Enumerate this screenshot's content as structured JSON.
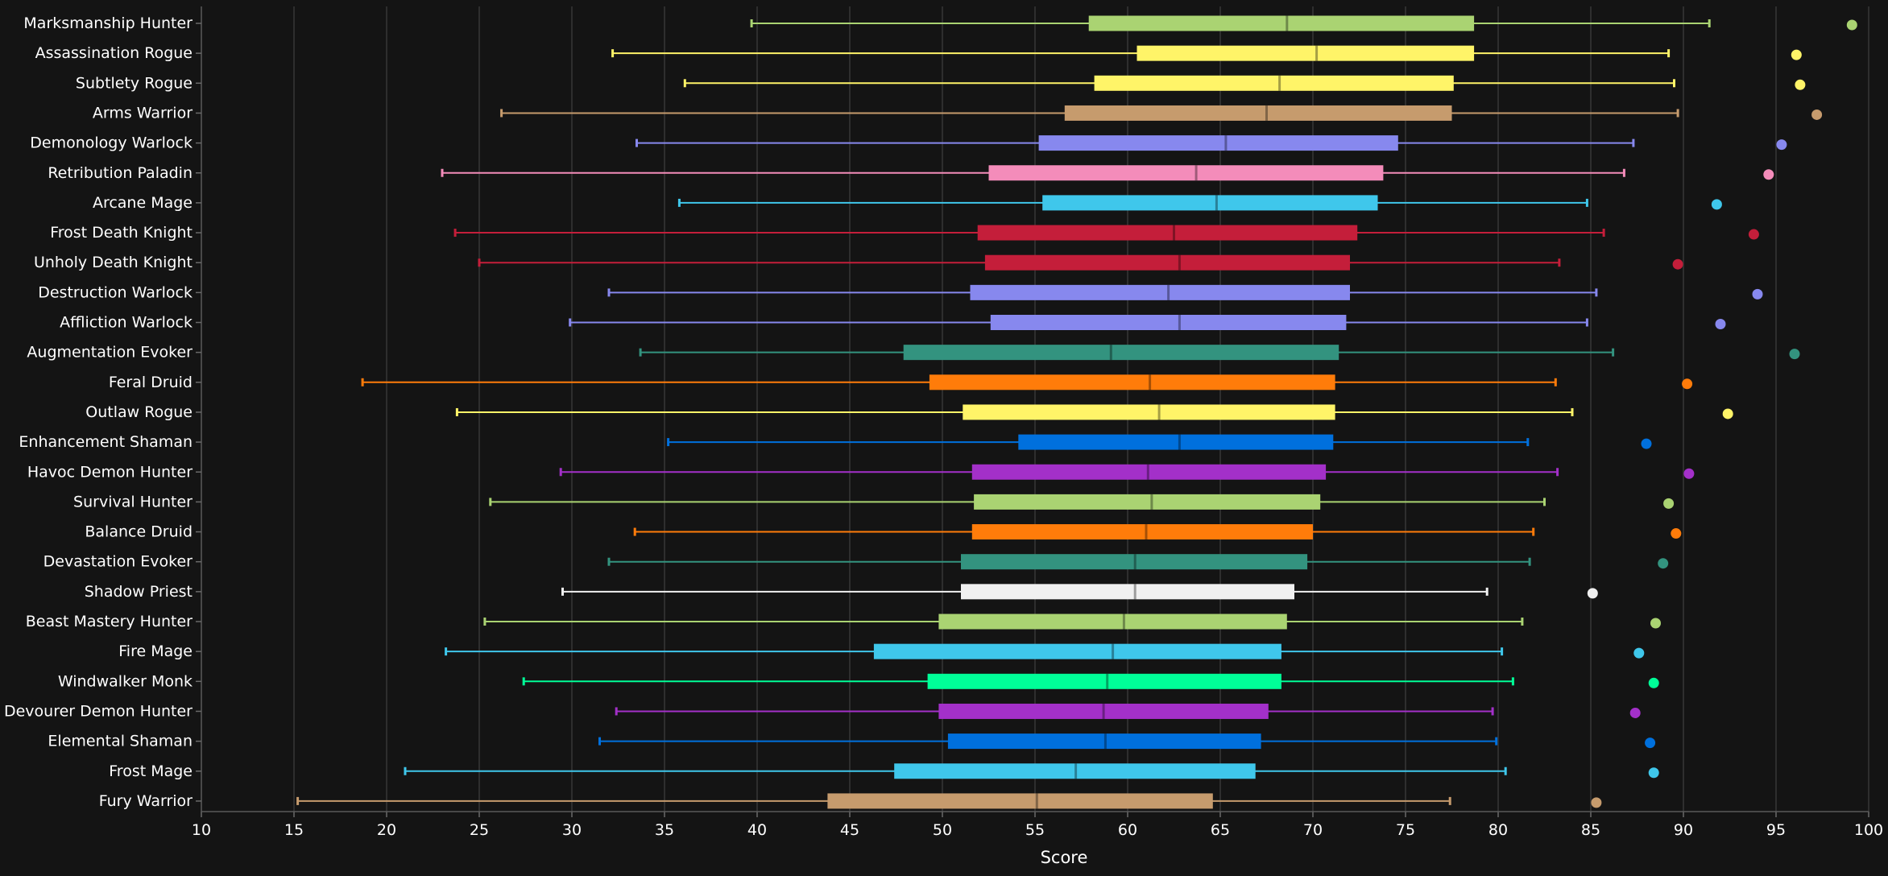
{
  "chart_data": {
    "type": "boxplot",
    "orientation": "horizontal",
    "xlabel": "Score",
    "xlim": [
      10,
      100
    ],
    "xticks": [
      10,
      15,
      20,
      25,
      30,
      35,
      40,
      45,
      50,
      55,
      60,
      65,
      70,
      75,
      80,
      85,
      90,
      95,
      100
    ],
    "grid": true,
    "categories": [
      "Marksmanship Hunter",
      "Assassination Rogue",
      "Subtlety Rogue",
      "Arms Warrior",
      "Demonology Warlock",
      "Retribution Paladin",
      "Arcane Mage",
      "Frost Death Knight",
      "Unholy Death Knight",
      "Destruction Warlock",
      "Affliction Warlock",
      "Augmentation Evoker",
      "Feral Druid",
      "Outlaw Rogue",
      "Enhancement Shaman",
      "Havoc Demon Hunter",
      "Survival Hunter",
      "Balance Druid",
      "Devastation Evoker",
      "Shadow Priest",
      "Beast Mastery Hunter",
      "Fire Mage",
      "Windwalker Monk",
      "Devourer Demon Hunter",
      "Elemental Shaman",
      "Frost Mage",
      "Fury Warrior"
    ],
    "series": [
      {
        "min": 39.7,
        "q1": 57.9,
        "median": 68.6,
        "q3": 78.7,
        "max": 91.4,
        "outlier": 99.1,
        "color": "#aad372"
      },
      {
        "min": 32.2,
        "q1": 60.5,
        "median": 70.2,
        "q3": 78.7,
        "max": 89.2,
        "outlier": 96.1,
        "color": "#fff468"
      },
      {
        "min": 36.1,
        "q1": 58.2,
        "median": 68.2,
        "q3": 77.6,
        "max": 89.5,
        "outlier": 96.3,
        "color": "#fff468"
      },
      {
        "min": 26.2,
        "q1": 56.6,
        "median": 67.5,
        "q3": 77.5,
        "max": 89.7,
        "outlier": 97.2,
        "color": "#c69b6d"
      },
      {
        "min": 33.5,
        "q1": 55.2,
        "median": 65.3,
        "q3": 74.6,
        "max": 87.3,
        "outlier": 95.3,
        "color": "#8788ee"
      },
      {
        "min": 23.0,
        "q1": 52.5,
        "median": 63.7,
        "q3": 73.8,
        "max": 86.8,
        "outlier": 94.6,
        "color": "#f48cba"
      },
      {
        "min": 35.8,
        "q1": 55.4,
        "median": 64.8,
        "q3": 73.5,
        "max": 84.8,
        "outlier": 91.8,
        "color": "#3fc7eb"
      },
      {
        "min": 23.7,
        "q1": 51.9,
        "median": 62.5,
        "q3": 72.4,
        "max": 85.7,
        "outlier": 93.8,
        "color": "#c41e3a"
      },
      {
        "min": 25.0,
        "q1": 52.3,
        "median": 62.8,
        "q3": 72.0,
        "max": 83.3,
        "outlier": 89.7,
        "color": "#c41e3a"
      },
      {
        "min": 32.0,
        "q1": 51.5,
        "median": 62.2,
        "q3": 72.0,
        "max": 85.3,
        "outlier": 94.0,
        "color": "#8788ee"
      },
      {
        "min": 29.9,
        "q1": 52.6,
        "median": 62.8,
        "q3": 71.8,
        "max": 84.8,
        "outlier": 92.0,
        "color": "#8788ee"
      },
      {
        "min": 33.7,
        "q1": 47.9,
        "median": 59.1,
        "q3": 71.4,
        "max": 86.2,
        "outlier": 96.0,
        "color": "#33937f"
      },
      {
        "min": 18.7,
        "q1": 49.3,
        "median": 61.2,
        "q3": 71.2,
        "max": 83.1,
        "outlier": 90.2,
        "color": "#ff7c0a"
      },
      {
        "min": 23.8,
        "q1": 51.1,
        "median": 61.7,
        "q3": 71.2,
        "max": 84.0,
        "outlier": 92.4,
        "color": "#fff468"
      },
      {
        "min": 35.2,
        "q1": 54.1,
        "median": 62.8,
        "q3": 71.1,
        "max": 81.6,
        "outlier": 88.0,
        "color": "#0070dd"
      },
      {
        "min": 29.4,
        "q1": 51.6,
        "median": 61.1,
        "q3": 70.7,
        "max": 83.2,
        "outlier": 90.3,
        "color": "#a330c9"
      },
      {
        "min": 25.6,
        "q1": 51.7,
        "median": 61.3,
        "q3": 70.4,
        "max": 82.5,
        "outlier": 89.2,
        "color": "#aad372"
      },
      {
        "min": 33.4,
        "q1": 51.6,
        "median": 61.0,
        "q3": 70.0,
        "max": 81.9,
        "outlier": 89.6,
        "color": "#ff7c0a"
      },
      {
        "min": 32.0,
        "q1": 51.0,
        "median": 60.4,
        "q3": 69.7,
        "max": 81.7,
        "outlier": 88.9,
        "color": "#33937f"
      },
      {
        "min": 29.5,
        "q1": 51.0,
        "median": 60.4,
        "q3": 69.0,
        "max": 79.4,
        "outlier": 85.1,
        "color": "#f0f0f0"
      },
      {
        "min": 25.3,
        "q1": 49.8,
        "median": 59.8,
        "q3": 68.6,
        "max": 81.3,
        "outlier": 88.5,
        "color": "#aad372"
      },
      {
        "min": 23.2,
        "q1": 46.3,
        "median": 59.2,
        "q3": 68.3,
        "max": 80.2,
        "outlier": 87.6,
        "color": "#3fc7eb"
      },
      {
        "min": 27.4,
        "q1": 49.2,
        "median": 58.9,
        "q3": 68.3,
        "max": 80.8,
        "outlier": 88.4,
        "color": "#00ff98"
      },
      {
        "min": 32.4,
        "q1": 49.8,
        "median": 58.7,
        "q3": 67.6,
        "max": 79.7,
        "outlier": 87.4,
        "color": "#a330c9"
      },
      {
        "min": 31.5,
        "q1": 50.3,
        "median": 58.8,
        "q3": 67.2,
        "max": 79.9,
        "outlier": 88.2,
        "color": "#0070dd"
      },
      {
        "min": 21.0,
        "q1": 47.4,
        "median": 57.2,
        "q3": 66.9,
        "max": 80.4,
        "outlier": 88.4,
        "color": "#3fc7eb"
      },
      {
        "min": 15.2,
        "q1": 43.8,
        "median": 55.1,
        "q3": 64.6,
        "max": 77.4,
        "outlier": 85.3,
        "color": "#c69b6d"
      }
    ]
  }
}
